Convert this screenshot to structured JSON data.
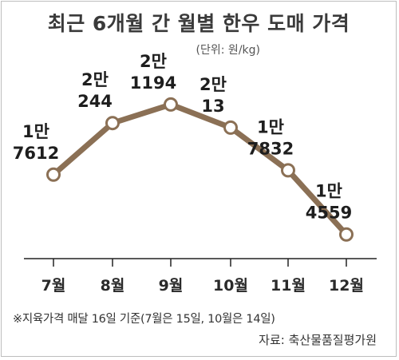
{
  "chart_data": {
    "type": "line",
    "title": "최근 6개월 간 월별 한우 도매 가격",
    "unit": "(단위: 원/kg)",
    "categories": [
      "7월",
      "8월",
      "9월",
      "10월",
      "11월",
      "12월"
    ],
    "values": [
      17612,
      20244,
      21194,
      20013,
      17832,
      14559
    ],
    "value_labels": [
      [
        "1만",
        "7612"
      ],
      [
        "2만",
        "244"
      ],
      [
        "2만",
        "1194"
      ],
      [
        "2만",
        "13"
      ],
      [
        "1만",
        "7832"
      ],
      [
        "1만",
        "4559"
      ]
    ],
    "ylim": [
      13000,
      24000
    ],
    "grid": false,
    "line_color": "#8b7055",
    "marker_fill": "#ffffff",
    "footnote": "※지육가격 매달 16일 기준(7월은 15일, 10월은 14일)",
    "source": "자료: 축산물품질평가원"
  }
}
